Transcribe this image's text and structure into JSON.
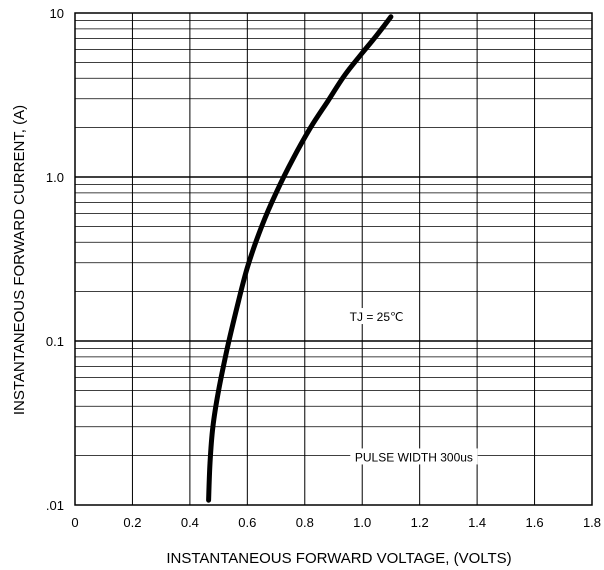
{
  "chart_data": {
    "type": "line",
    "xlabel": "INSTANTANEOUS FORWARD VOLTAGE, (VOLTS)",
    "ylabel": "INSTANTANEOUS  FORWARD CURRENT, (A)",
    "x_scale": "linear",
    "y_scale": "log",
    "xlim": [
      0,
      1.8
    ],
    "ylim": [
      0.01,
      10
    ],
    "x_ticks": [
      "0",
      "0.2",
      "0.4",
      "0.6",
      "0.8",
      "1.0",
      "1.2",
      "1.4",
      "1.6",
      "1.8"
    ],
    "y_ticks": [
      {
        "value": 10,
        "label": "10"
      },
      {
        "value": 1,
        "label": "1.0"
      },
      {
        "value": 0.1,
        "label": "0.1"
      },
      {
        "value": 0.01,
        "label": ".01"
      }
    ],
    "grid": true,
    "series": [
      {
        "x": [
          0.465,
          0.47,
          0.48,
          0.5,
          0.53,
          0.56,
          0.6,
          0.65,
          0.7,
          0.76,
          0.82,
          0.88,
          0.94,
          1.0,
          1.05,
          1.1
        ],
        "y": [
          0.0107,
          0.018,
          0.03,
          0.05,
          0.09,
          0.15,
          0.28,
          0.5,
          0.8,
          1.3,
          2.0,
          2.9,
          4.2,
          5.7,
          7.3,
          9.5
        ]
      }
    ],
    "annotations": [
      {
        "text": "TJ = 25℃",
        "x": 1.05,
        "y": 0.14
      },
      {
        "text": "PULSE WIDTH 300us",
        "x": 1.18,
        "y": 0.0195
      }
    ]
  }
}
